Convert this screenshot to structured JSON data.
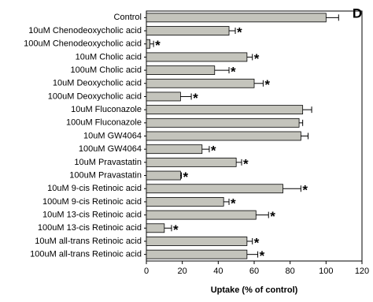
{
  "chart_data": {
    "type": "bar",
    "orientation": "horizontal",
    "panel_label": "D",
    "x_label": "Uptake (% of control)",
    "categories": [
      "Control",
      "10uM Chenodeoxycholic acid",
      "100uM Chenodeoxycholic acid",
      "10uM Cholic acid",
      "100uM Cholic acid",
      "10uM Deoxycholic acid",
      "100uM Deoxycholic acid",
      "10uM Fluconazole",
      "100uM Fluconazole",
      "10uM GW4064",
      "100uM GW4064",
      "10uM Pravastatin",
      "100uM Pravastatin",
      "10uM 9-cis Retinoic acid",
      "100uM 9-cis Retinoic acid",
      "10uM 13-cis Retinoic acid",
      "100uM 13-cis Retinoic acid",
      "10uM all-trans Retinoic acid",
      "100uM all-trans Retinoic acid"
    ],
    "values": [
      100,
      46,
      2,
      56,
      38,
      60,
      19,
      87,
      85,
      86,
      31,
      50,
      19,
      76,
      43,
      61,
      10,
      56,
      56
    ],
    "errors": [
      7,
      3.5,
      2,
      3,
      8,
      5,
      6,
      5,
      2,
      4,
      4,
      3,
      0.5,
      10,
      3,
      7,
      4,
      3,
      6
    ],
    "significance": [
      null,
      "*",
      "*",
      "*",
      "*",
      "*",
      "*",
      null,
      null,
      null,
      "*",
      "*",
      "*",
      "*",
      "*",
      "*",
      "*",
      "*",
      "*"
    ],
    "color": "#c4c4bc",
    "xlim": [
      0,
      120
    ],
    "xticks": [
      0,
      20,
      40,
      60,
      80,
      100,
      120
    ]
  }
}
